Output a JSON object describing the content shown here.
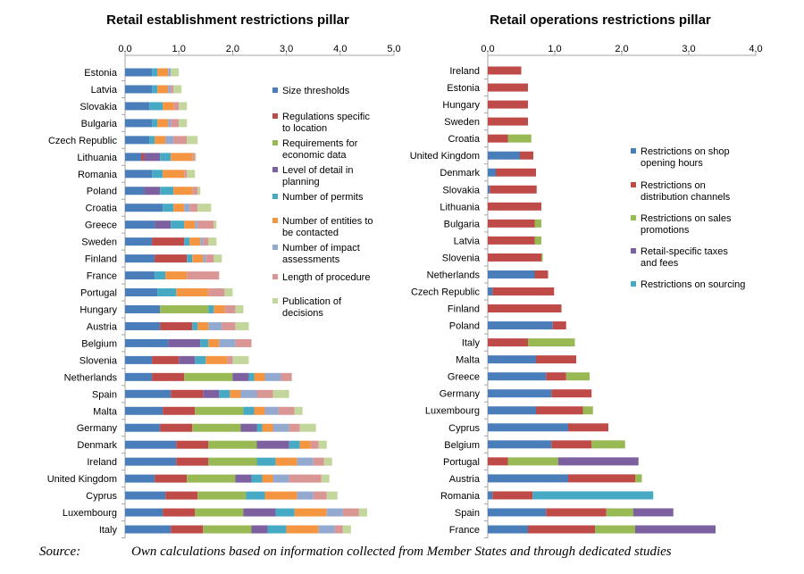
{
  "colors": {
    "blue": "#4a7ebb",
    "red": "#be4b48",
    "green": "#98b954",
    "purple": "#7d60a0",
    "teal": "#46aac4",
    "orange": "#f49542",
    "lightblue": "#93a9cf",
    "pink": "#d99694",
    "lightgreen": "#c3d69b",
    "axis": "#a6a6a6"
  },
  "chart_data": [
    {
      "type": "bar",
      "orientation": "horizontal",
      "stacked": true,
      "title": "Retail establishment restrictions pillar",
      "xlim": [
        0,
        5
      ],
      "xticks": [
        "0.0",
        "1.0",
        "2.0",
        "3.0",
        "4.0",
        "5.0"
      ],
      "legend_position": "right",
      "categories": [
        "Estonia",
        "Latvia",
        "Slovakia",
        "Bulgaria",
        "Czech Republic",
        "Lithuania",
        "Romania",
        "Poland",
        "Croatia",
        "Greece",
        "Sweden",
        "Finland",
        "France",
        "Portugal",
        "Hungary",
        "Austria",
        "Belgium",
        "Slovenia",
        "Netherlands",
        "Spain",
        "Malta",
        "Germany",
        "Denmark",
        "Ireland",
        "United Kingdom",
        "Cyprus",
        "Luxembourg",
        "Italy"
      ],
      "series": [
        {
          "name": "Size thresholds",
          "color_key": "blue",
          "values": [
            0.5,
            0.5,
            0.45,
            0.5,
            0.45,
            0.3,
            0.5,
            0.35,
            0.7,
            0.55,
            0.5,
            0.55,
            0.55,
            0.6,
            0.65,
            0.65,
            0.8,
            0.5,
            0.5,
            0.85,
            0.7,
            0.65,
            0.95,
            0.95,
            0.55,
            0.75,
            0.7,
            0.85
          ]
        },
        {
          "name": "Regulations specific to location",
          "color_key": "red",
          "values": [
            0,
            0,
            0,
            0,
            0,
            0.05,
            0,
            0,
            0,
            0,
            0.6,
            0.6,
            0,
            0,
            0,
            0.6,
            0,
            0.5,
            0.6,
            0.6,
            0.6,
            0.6,
            0.6,
            0.6,
            0.6,
            0.6,
            0.6,
            0.6
          ]
        },
        {
          "name": "Requirements for economic data",
          "color_key": "green",
          "values": [
            0,
            0,
            0,
            0,
            0,
            0,
            0,
            0,
            0,
            0,
            0,
            0,
            0,
            0,
            0.9,
            0,
            0,
            0,
            0.9,
            0,
            0.9,
            0.9,
            0.9,
            0.9,
            0.9,
            0.9,
            0.9,
            0.9
          ]
        },
        {
          "name": "Level of detail in planning",
          "color_key": "purple",
          "values": [
            0,
            0,
            0,
            0,
            0,
            0.3,
            0,
            0.3,
            0,
            0.3,
            0,
            0,
            0,
            0,
            0,
            0,
            0.6,
            0.3,
            0.3,
            0.3,
            0,
            0.3,
            0.6,
            0,
            0.3,
            0,
            0.6,
            0.3
          ]
        },
        {
          "name": "Number of permits",
          "color_key": "teal",
          "values": [
            0.1,
            0.1,
            0.25,
            0.1,
            0.1,
            0.2,
            0.2,
            0.25,
            0.2,
            0.25,
            0.1,
            0.1,
            0.2,
            0.35,
            0.1,
            0.1,
            0.15,
            0.2,
            0.1,
            0.2,
            0.2,
            0.1,
            0.2,
            0.35,
            0.2,
            0.35,
            0.35,
            0.35
          ]
        },
        {
          "name": "Number of entities to be contacted",
          "color_key": "orange",
          "values": [
            0.2,
            0.2,
            0.2,
            0.2,
            0.2,
            0.4,
            0.4,
            0.35,
            0.2,
            0.2,
            0.2,
            0.2,
            0.4,
            0.6,
            0.2,
            0.2,
            0.2,
            0.4,
            0.2,
            0.2,
            0.2,
            0.2,
            0.2,
            0.4,
            0.2,
            0.6,
            0.6,
            0.6
          ]
        },
        {
          "name": "Number of impact assessments",
          "color_key": "lightblue",
          "values": [
            0.05,
            0.05,
            0,
            0.05,
            0.15,
            0,
            0,
            0,
            0.1,
            0.05,
            0.05,
            0.05,
            0,
            0,
            0,
            0.25,
            0.3,
            0,
            0.3,
            0.3,
            0.25,
            0.3,
            0,
            0.3,
            0.3,
            0.3,
            0.3,
            0.3
          ]
        },
        {
          "name": "Length of procedure",
          "color_key": "pink",
          "values": [
            0,
            0.05,
            0.1,
            0.15,
            0.25,
            0.05,
            0.05,
            0.1,
            0.15,
            0.3,
            0.1,
            0.15,
            0.6,
            0.3,
            0.2,
            0.25,
            0.3,
            0.1,
            0.2,
            0.3,
            0.3,
            0.2,
            0.15,
            0.2,
            0.6,
            0.25,
            0.3,
            0.15
          ]
        },
        {
          "name": "Publication of decisions",
          "color_key": "lightgreen",
          "values": [
            0.15,
            0.15,
            0.15,
            0.15,
            0.2,
            0.02,
            0.15,
            0.05,
            0.25,
            0.05,
            0.15,
            0.15,
            0,
            0.15,
            0.15,
            0.25,
            0,
            0.3,
            0,
            0.3,
            0.15,
            0.3,
            0.15,
            0.15,
            0.15,
            0.2,
            0.15,
            0.15
          ]
        }
      ]
    },
    {
      "type": "bar",
      "orientation": "horizontal",
      "stacked": true,
      "title": "Retail operations restrictions pillar",
      "xlim": [
        0,
        4
      ],
      "xticks": [
        "0.0",
        "1.0",
        "2.0",
        "3.0",
        "4.0"
      ],
      "legend_position": "right",
      "categories": [
        "Ireland",
        "Estonia",
        "Hungary",
        "Sweden",
        "Croatia",
        "United Kingdom",
        "Denmark",
        "Slovakia",
        "Lithuania",
        "Bulgaria",
        "Latvia",
        "Slovenia",
        "Netherlands",
        "Czech Republic",
        "Finland",
        "Poland",
        "Italy",
        "Malta",
        "Greece",
        "Germany",
        "Luxembourg",
        "Cyprus",
        "Belgium",
        "Portugal",
        "Austria",
        "Romania",
        "Spain",
        "France"
      ],
      "series": [
        {
          "name": "Restrictions on shop opening hours",
          "color_key": "blue",
          "values": [
            0,
            0,
            0,
            0,
            0,
            0.48,
            0.12,
            0.03,
            0,
            0,
            0,
            0,
            0.7,
            0.07,
            0,
            0.97,
            0,
            0.72,
            0.87,
            0.95,
            0.72,
            1.2,
            0.95,
            0,
            1.2,
            0.07,
            0.87,
            0.6
          ]
        },
        {
          "name": "Restrictions on distribution channels",
          "color_key": "red",
          "values": [
            0.5,
            0.6,
            0.6,
            0.6,
            0.3,
            0.2,
            0.6,
            0.7,
            0.8,
            0.7,
            0.7,
            0.8,
            0.2,
            0.92,
            1.1,
            0.2,
            0.6,
            0.6,
            0.3,
            0.6,
            0.7,
            0.6,
            0.6,
            0.3,
            1.0,
            0.6,
            0.9,
            1.0
          ]
        },
        {
          "name": "Restrictions on sales promotions",
          "color_key": "green",
          "values": [
            0,
            0,
            0,
            0,
            0.35,
            0,
            0,
            0,
            0,
            0.1,
            0.1,
            0.02,
            0,
            0,
            0,
            0,
            0.7,
            0,
            0.35,
            0,
            0.15,
            0,
            0.5,
            0.75,
            0.1,
            0,
            0.4,
            0.6
          ]
        },
        {
          "name": "Retail-specific taxes and fees",
          "color_key": "purple",
          "values": [
            0,
            0,
            0,
            0,
            0,
            0,
            0,
            0,
            0,
            0,
            0,
            0,
            0,
            0,
            0,
            0,
            0,
            0,
            0,
            0,
            0,
            0,
            0,
            1.2,
            0,
            0,
            0.6,
            1.2
          ]
        },
        {
          "name": "Restrictions on sourcing",
          "color_key": "teal",
          "values": [
            0,
            0,
            0,
            0,
            0,
            0,
            0,
            0,
            0,
            0,
            0,
            0,
            0,
            0,
            0,
            0,
            0,
            0,
            0,
            0,
            0,
            0,
            0,
            0,
            0,
            1.8,
            0,
            0
          ]
        }
      ]
    }
  ],
  "source": {
    "label": "Source:",
    "text": "Own calculations based on information collected from Member States and through dedicated studies"
  }
}
